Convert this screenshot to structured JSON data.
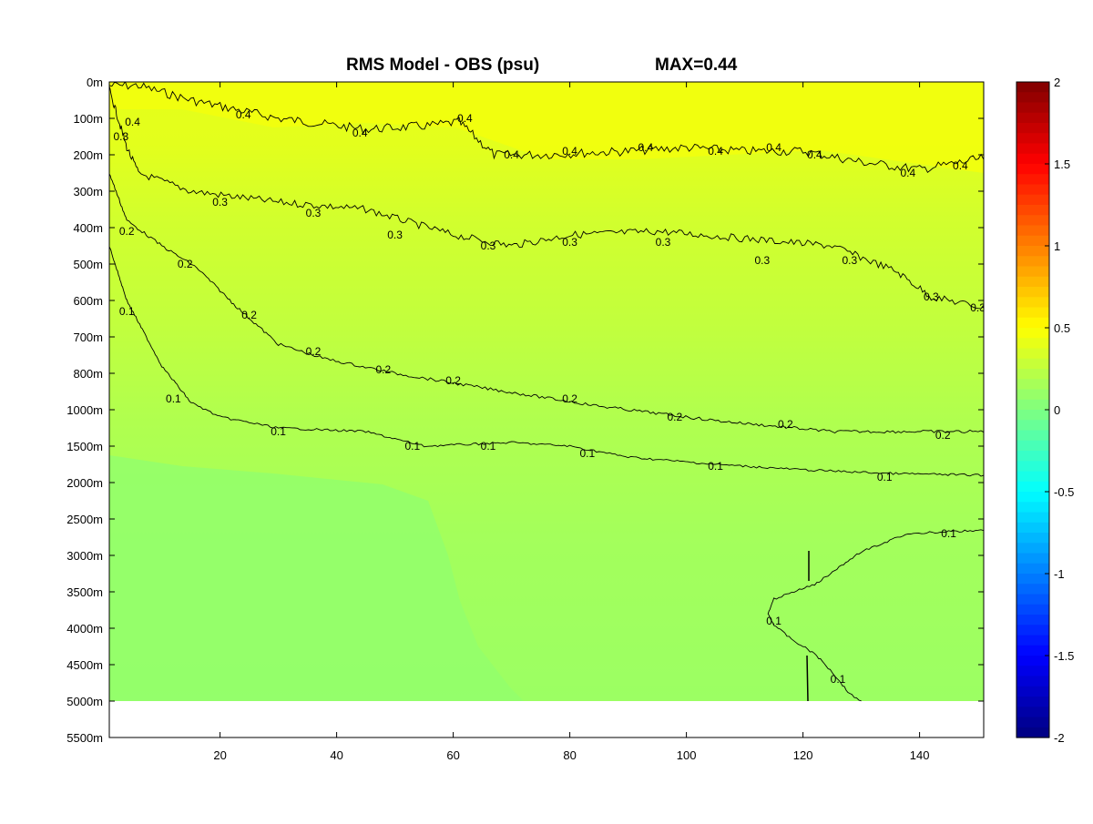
{
  "chart_data": {
    "type": "heatmap",
    "title": "RMS Model - OBS (psu)",
    "subtitle": "MAX=0.44",
    "xlabel": "",
    "ylabel": "",
    "xlim": [
      1,
      151
    ],
    "x_ticks": [
      20,
      40,
      60,
      80,
      100,
      120,
      140
    ],
    "y_tick_labels": [
      "0m",
      "100m",
      "200m",
      "300m",
      "400m",
      "500m",
      "600m",
      "700m",
      "800m",
      "1000m",
      "1500m",
      "2000m",
      "2500m",
      "3000m",
      "3500m",
      "4000m",
      "4500m",
      "5000m",
      "5500m"
    ],
    "data_bottom_depth": "5000m",
    "colorbar": {
      "colormap": "jet",
      "range": [
        -2,
        2
      ],
      "ticks": [
        2,
        1.5,
        1,
        0.5,
        0,
        -0.5,
        -1,
        -1.5,
        -2
      ]
    },
    "contour_levels": [
      0.1,
      0.2,
      0.3,
      0.4
    ],
    "contours": [
      {
        "level": 0.4,
        "points": [
          [
            1,
            0.1
          ],
          [
            6,
            0.1
          ],
          [
            15,
            0.5
          ],
          [
            30,
            1.0
          ],
          [
            45,
            1.3
          ],
          [
            56,
            1.2
          ],
          [
            61,
            1.1
          ],
          [
            67,
            2.0
          ],
          [
            75,
            2.0
          ],
          [
            90,
            1.9
          ],
          [
            100,
            1.8
          ],
          [
            110,
            1.9
          ],
          [
            120,
            1.9
          ],
          [
            130,
            2.2
          ],
          [
            140,
            2.4
          ],
          [
            151,
            2.1
          ]
        ],
        "label_positions": [
          [
            5,
            1.1
          ],
          [
            24,
            0.9
          ],
          [
            44,
            1.4
          ],
          [
            62,
            1.0
          ],
          [
            70,
            2.0
          ],
          [
            80,
            1.9
          ],
          [
            93,
            1.8
          ],
          [
            105,
            1.9
          ],
          [
            115,
            1.8
          ],
          [
            122,
            2.0
          ],
          [
            138,
            2.5
          ],
          [
            147,
            2.3
          ]
        ]
      },
      {
        "level": 0.3,
        "points": [
          [
            1,
            0.2
          ],
          [
            4,
            1.8
          ],
          [
            6,
            2.5
          ],
          [
            15,
            3.0
          ],
          [
            30,
            3.3
          ],
          [
            45,
            3.5
          ],
          [
            60,
            4.2
          ],
          [
            70,
            4.5
          ],
          [
            80,
            4.2
          ],
          [
            95,
            4.1
          ],
          [
            110,
            4.3
          ],
          [
            125,
            4.5
          ],
          [
            136,
            5.2
          ],
          [
            142,
            5.9
          ],
          [
            151,
            6.2
          ]
        ],
        "label_positions": [
          [
            3,
            1.5
          ],
          [
            20,
            3.3
          ],
          [
            36,
            3.6
          ],
          [
            50,
            4.2
          ],
          [
            66,
            4.5
          ],
          [
            80,
            4.4
          ],
          [
            96,
            4.4
          ],
          [
            113,
            4.9
          ],
          [
            128,
            4.9
          ],
          [
            142,
            5.9
          ],
          [
            150,
            6.2
          ]
        ]
      },
      {
        "level": 0.2,
        "points": [
          [
            1,
            2.5
          ],
          [
            4,
            3.8
          ],
          [
            10,
            4.5
          ],
          [
            16,
            5.1
          ],
          [
            23,
            6.2
          ],
          [
            30,
            7.2
          ],
          [
            38,
            7.6
          ],
          [
            50,
            8.0
          ],
          [
            65,
            8.4
          ],
          [
            85,
            8.9
          ],
          [
            105,
            9.3
          ],
          [
            125,
            9.6
          ],
          [
            151,
            9.6
          ]
        ],
        "label_positions": [
          [
            4,
            4.1
          ],
          [
            14,
            5.0
          ],
          [
            25,
            6.4
          ],
          [
            36,
            7.4
          ],
          [
            48,
            7.9
          ],
          [
            60,
            8.2
          ],
          [
            80,
            8.7
          ],
          [
            98,
            9.2
          ],
          [
            117,
            9.4
          ],
          [
            144,
            9.7
          ]
        ]
      },
      {
        "level": 0.1,
        "points": [
          [
            1,
            4.5
          ],
          [
            4,
            6.0
          ],
          [
            10,
            7.8
          ],
          [
            15,
            8.8
          ],
          [
            20,
            9.2
          ],
          [
            30,
            9.5
          ],
          [
            45,
            9.6
          ],
          [
            55,
            10.0
          ],
          [
            70,
            9.9
          ],
          [
            80,
            10.0
          ],
          [
            90,
            10.3
          ],
          [
            105,
            10.5
          ],
          [
            120,
            10.65
          ],
          [
            135,
            10.75
          ],
          [
            151,
            10.8
          ]
        ],
        "label_positions": [
          [
            4,
            6.3
          ],
          [
            12,
            8.7
          ],
          [
            30,
            9.6
          ],
          [
            53,
            10.0
          ],
          [
            66,
            10.0
          ],
          [
            83,
            10.2
          ],
          [
            105,
            10.55
          ],
          [
            134,
            10.85
          ]
        ]
      },
      {
        "level": 0.1,
        "points": [
          [
            151,
            12.3
          ],
          [
            138,
            12.4
          ],
          [
            130,
            12.9
          ],
          [
            122,
            13.8
          ],
          [
            115,
            14.2
          ],
          [
            114,
            14.6
          ],
          [
            115,
            14.9
          ],
          [
            118,
            15.3
          ],
          [
            122,
            15.7
          ],
          [
            125,
            16.2
          ],
          [
            128,
            16.8
          ],
          [
            130,
            17.0
          ]
        ],
        "label_positions": [
          [
            145,
            12.4
          ],
          [
            115,
            14.8
          ],
          [
            126,
            16.4
          ]
        ]
      }
    ]
  }
}
